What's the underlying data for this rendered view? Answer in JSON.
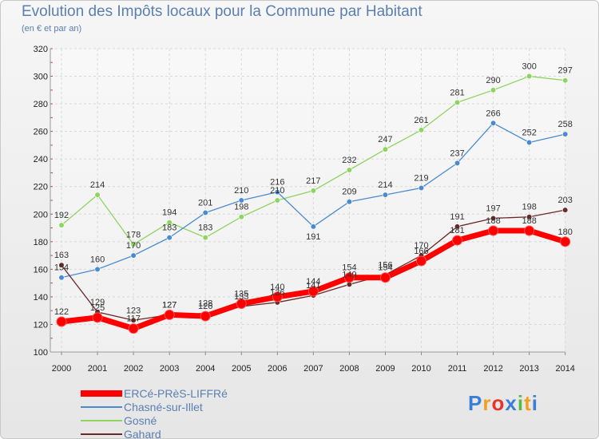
{
  "chart_data": {
    "type": "line",
    "title": "Evolution des Impôts locaux pour la Commune par Habitant",
    "subtitle": "(en € et par an)",
    "x": [
      "2000",
      "2001",
      "2002",
      "2003",
      "2004",
      "2005",
      "2006",
      "2007",
      "2008",
      "2009",
      "2010",
      "2011",
      "2012",
      "2013",
      "2014"
    ],
    "ylim": [
      100,
      320
    ],
    "yticks": [
      "100",
      "120",
      "140",
      "160",
      "180",
      "200",
      "220",
      "240",
      "260",
      "280",
      "300",
      "320"
    ],
    "grid": true,
    "legend_position": "bottom-left",
    "series": [
      {
        "name": "ERCé-PRèS-LIFFRé",
        "color": "#ff0000",
        "values": [
          122,
          125,
          117,
          127,
          126,
          135,
          140,
          144,
          154,
          154,
          166,
          181,
          188,
          188,
          180
        ],
        "labels": [
          "122",
          "125",
          "117",
          "127",
          "126",
          "135",
          "140",
          "144",
          "154",
          "154",
          "166",
          "181",
          "188",
          "188",
          "180"
        ]
      },
      {
        "name": "Chasné-sur-Illet",
        "color": "#4a8bd0",
        "values": [
          154,
          160,
          170,
          183,
          201,
          210,
          216,
          191,
          209,
          214,
          219,
          237,
          266,
          252,
          258
        ],
        "labels": [
          "154",
          "160",
          "170",
          "183",
          "201",
          "210",
          "216",
          "191",
          "209",
          "214",
          "219",
          "237",
          "266",
          "252",
          "258"
        ]
      },
      {
        "name": "Gosné",
        "color": "#8fd460",
        "values": [
          192,
          214,
          178,
          194,
          183,
          198,
          210,
          217,
          232,
          247,
          261,
          281,
          290,
          300,
          297
        ],
        "labels": [
          "192",
          "214",
          "178",
          "194",
          "183",
          "198",
          "210",
          "217",
          "232",
          "247",
          "261",
          "281",
          "290",
          "300",
          "297"
        ]
      },
      {
        "name": "Gahard",
        "color": "#6b2a2a",
        "values": [
          163,
          129,
          123,
          127,
          128,
          133,
          136,
          141,
          149,
          156,
          170,
          191,
          197,
          198,
          203
        ],
        "labels": [
          "163",
          "129",
          "123",
          "127",
          "128",
          "133",
          "136",
          "141",
          "149",
          "156",
          "170",
          "191",
          "197",
          "198",
          "203"
        ]
      }
    ]
  },
  "branding": {
    "logo_text": "Proxiti",
    "colors": [
      "#3a7fd5",
      "#f0a020",
      "#e8352a",
      "#3a7fd5",
      "#58b848",
      "#f0a020",
      "#3a7fd5"
    ]
  }
}
